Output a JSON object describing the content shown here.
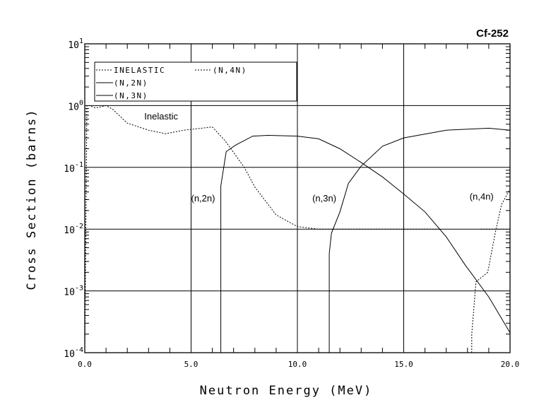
{
  "chart_data": {
    "type": "line",
    "title": "Cf-252",
    "xlabel": "Neutron Energy (MeV)",
    "ylabel": "Cross Section (barns)",
    "xlim": [
      0,
      20
    ],
    "ylim": [
      0.0001,
      10
    ],
    "yscale": "log",
    "grid": true,
    "legend_position": "top-left",
    "x_ticks": [
      "0.0",
      "5.0",
      "10.0",
      "15.0",
      "20.0"
    ],
    "y_ticks": [
      {
        "base": "10",
        "exp": "1"
      },
      {
        "base": "10",
        "exp": "0"
      },
      {
        "base": "10",
        "exp": "-1"
      },
      {
        "base": "10",
        "exp": "-2"
      },
      {
        "base": "10",
        "exp": "-3"
      },
      {
        "base": "10",
        "exp": "-4"
      }
    ],
    "series": [
      {
        "name": "INELASTIC",
        "style": "dashed",
        "x": [
          0.0,
          0.1,
          0.2,
          0.5,
          0.75,
          1.0,
          1.3,
          2.0,
          3.0,
          3.8,
          4.65,
          6.0,
          6.6,
          7.5,
          8.0,
          9.0,
          10.0,
          11.0,
          16.7
        ],
        "y": [
          0.0001,
          1.0,
          1.0,
          0.92,
          0.95,
          1.0,
          0.88,
          0.52,
          0.4,
          0.35,
          0.4,
          0.45,
          0.27,
          0.1,
          0.048,
          0.017,
          0.011,
          0.01,
          0.01
        ]
      },
      {
        "name": "INELASTIC",
        "style": "dashed",
        "x": [
          18.6,
          20.0
        ],
        "y": [
          0.01,
          0.01
        ]
      },
      {
        "name": "(N,2N)",
        "style": "solid",
        "x": [
          6.4,
          6.4,
          6.65,
          7.1,
          7.9,
          8.6,
          10.0,
          11.0,
          12.0,
          13.0,
          14.0,
          15.0,
          16.0,
          17.0,
          17.9,
          19.0,
          20.0
        ],
        "y": [
          0.0001,
          0.05,
          0.18,
          0.23,
          0.32,
          0.33,
          0.32,
          0.29,
          0.2,
          0.12,
          0.07,
          0.037,
          0.019,
          0.0075,
          0.0026,
          0.0008,
          0.00021
        ]
      },
      {
        "name": "(N,3N)",
        "style": "solid",
        "x": [
          11.5,
          11.5,
          11.6,
          12.0,
          12.4,
          13.0,
          14.0,
          15.0,
          17.0,
          19.0,
          20.0
        ],
        "y": [
          0.0001,
          0.004,
          0.0086,
          0.019,
          0.055,
          0.105,
          0.22,
          0.3,
          0.4,
          0.43,
          0.4
        ]
      },
      {
        "name": "(N,4N)",
        "style": "dashed",
        "x": [
          18.2,
          18.2,
          18.4,
          18.95,
          19.3,
          19.6,
          20.0
        ],
        "y": [
          0.0001,
          0.0002,
          0.0014,
          0.002,
          0.0085,
          0.025,
          0.045
        ]
      }
    ],
    "legend": [
      "INELASTIC",
      "(N,4N)",
      "(N,2N)",
      "(N,3N)"
    ],
    "annotations": [
      {
        "text": "Inelastic",
        "x": 2.8,
        "y": 0.6
      },
      {
        "text": "(n,2n)",
        "x": 5.0,
        "y": 0.028
      },
      {
        "text": "(n,3n)",
        "x": 10.7,
        "y": 0.028
      },
      {
        "text": "(n,4n)",
        "x": 18.1,
        "y": 0.03
      }
    ]
  }
}
